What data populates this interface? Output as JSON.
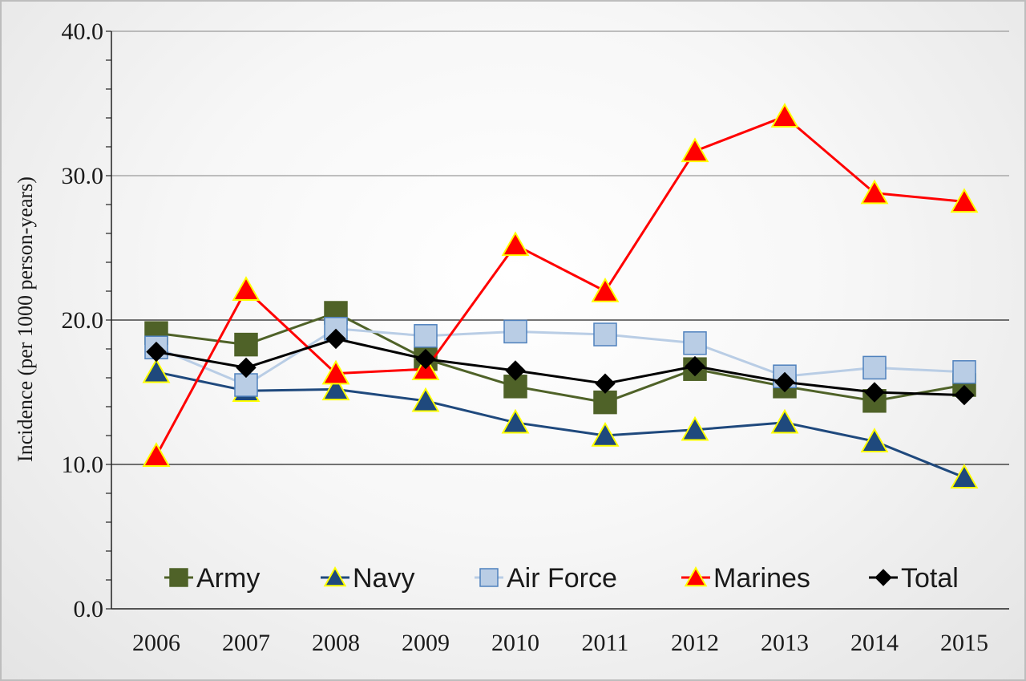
{
  "chart_data": {
    "type": "line",
    "title": "",
    "xlabel": "",
    "ylabel": "Incidence (per 1000 person-years)",
    "ylim": [
      0,
      40
    ],
    "yticks": [
      "0.0",
      "10.0",
      "20.0",
      "30.0",
      "40.0"
    ],
    "categories": [
      "2006",
      "2007",
      "2008",
      "2009",
      "2010",
      "2011",
      "2012",
      "2013",
      "2014",
      "2015"
    ],
    "grid": "horizontal gridlines at labeled ticks",
    "legend_position": "bottom inside plot",
    "series": [
      {
        "name": "Army",
        "color": "#4f6228",
        "marker": "square",
        "marker_fill": "#4f6228",
        "marker_edge": "#4f6228",
        "values": [
          19.1,
          18.3,
          20.5,
          17.3,
          15.4,
          14.3,
          16.6,
          15.4,
          14.4,
          15.5
        ]
      },
      {
        "name": "Navy",
        "color": "#1f497d",
        "marker": "triangle",
        "marker_fill": "#1f497d",
        "marker_edge": "#ffff00",
        "values": [
          16.4,
          15.1,
          15.2,
          14.4,
          12.9,
          12.0,
          12.4,
          12.9,
          11.6,
          9.1
        ]
      },
      {
        "name": "Air Force",
        "color": "#b9cde5",
        "marker": "square",
        "marker_fill": "#b9cde5",
        "marker_edge": "#4f81bd",
        "values": [
          18.1,
          15.5,
          19.4,
          18.9,
          19.2,
          19.0,
          18.4,
          16.1,
          16.7,
          16.4
        ]
      },
      {
        "name": "Marines",
        "color": "#ff0000",
        "marker": "triangle",
        "marker_fill": "#ff0000",
        "marker_edge": "#ffff00",
        "values": [
          10.6,
          22.1,
          16.3,
          16.6,
          25.2,
          22.0,
          31.7,
          34.1,
          28.8,
          28.2
        ]
      },
      {
        "name": "Total",
        "color": "#000000",
        "marker": "diamond",
        "marker_fill": "#000000",
        "marker_edge": "#000000",
        "values": [
          17.8,
          16.7,
          18.7,
          17.3,
          16.5,
          15.6,
          16.8,
          15.7,
          15.0,
          14.8
        ]
      }
    ]
  }
}
